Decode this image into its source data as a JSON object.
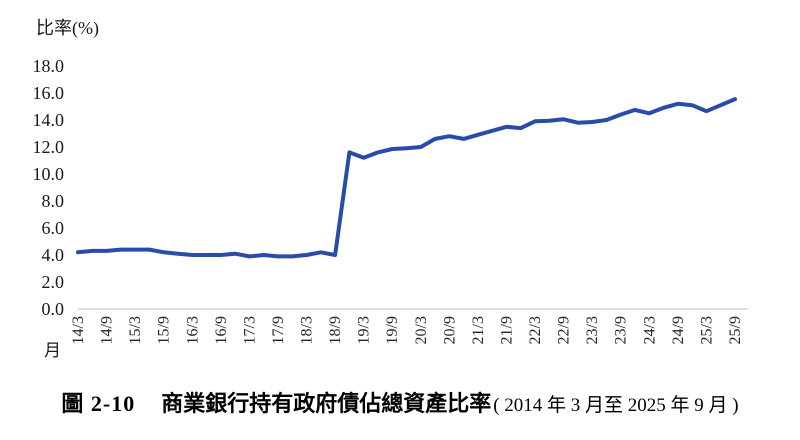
{
  "figure": {
    "number": "圖 2-10",
    "title": "商業銀行持有政府債佔總資產比率",
    "period": "( 2014 年 3 月至 2025 年 9 月 )"
  },
  "chart": {
    "y_axis_title": "比率(%)",
    "x_axis_title": "月"
  },
  "chart_data": {
    "type": "line",
    "title": "商業銀行持有政府債佔總資產比率",
    "ylabel": "比率(%)",
    "xlabel": "月",
    "ylim": [
      0,
      18
    ],
    "ytick_step": 2,
    "grid": false,
    "legend": "none",
    "line_color": "#2B4BAB",
    "axis_color": "#BFBFBF",
    "y_tick_labels": [
      "0.0",
      "2.0",
      "4.0",
      "6.0",
      "8.0",
      "10.0",
      "12.0",
      "14.0",
      "16.0",
      "18.0"
    ],
    "x_tick_labels": [
      "14/3",
      "14/9",
      "15/3",
      "15/9",
      "16/3",
      "16/9",
      "17/3",
      "17/9",
      "18/3",
      "18/9",
      "19/3",
      "19/9",
      "20/3",
      "20/9",
      "21/3",
      "21/9",
      "22/3",
      "22/9",
      "23/3",
      "23/9",
      "24/3",
      "24/9",
      "25/3",
      "25/9"
    ],
    "x": [
      "14/3",
      "14/6",
      "14/9",
      "14/12",
      "15/3",
      "15/6",
      "15/9",
      "15/12",
      "16/3",
      "16/6",
      "16/9",
      "16/12",
      "17/3",
      "17/6",
      "17/9",
      "17/12",
      "18/3",
      "18/6",
      "18/9",
      "18/12",
      "19/3",
      "19/6",
      "19/9",
      "19/12",
      "20/3",
      "20/6",
      "20/9",
      "20/12",
      "21/3",
      "21/6",
      "21/9",
      "21/12",
      "22/3",
      "22/6",
      "22/9",
      "22/12",
      "23/3",
      "23/6",
      "23/9",
      "23/12",
      "24/3",
      "24/6",
      "24/9",
      "24/12",
      "25/3",
      "25/6",
      "25/9"
    ],
    "values": [
      4.2,
      4.3,
      4.3,
      4.4,
      4.4,
      4.4,
      4.2,
      4.1,
      4.0,
      4.0,
      4.0,
      4.1,
      3.9,
      4.0,
      3.9,
      3.9,
      4.0,
      4.2,
      4.0,
      11.6,
      11.2,
      11.6,
      11.85,
      11.9,
      12.0,
      12.6,
      12.8,
      12.6,
      12.9,
      13.2,
      13.5,
      13.4,
      13.9,
      13.95,
      14.05,
      13.8,
      13.85,
      14.0,
      14.4,
      14.75,
      14.5,
      14.9,
      15.2,
      15.1,
      14.65,
      15.1,
      15.55
    ]
  }
}
